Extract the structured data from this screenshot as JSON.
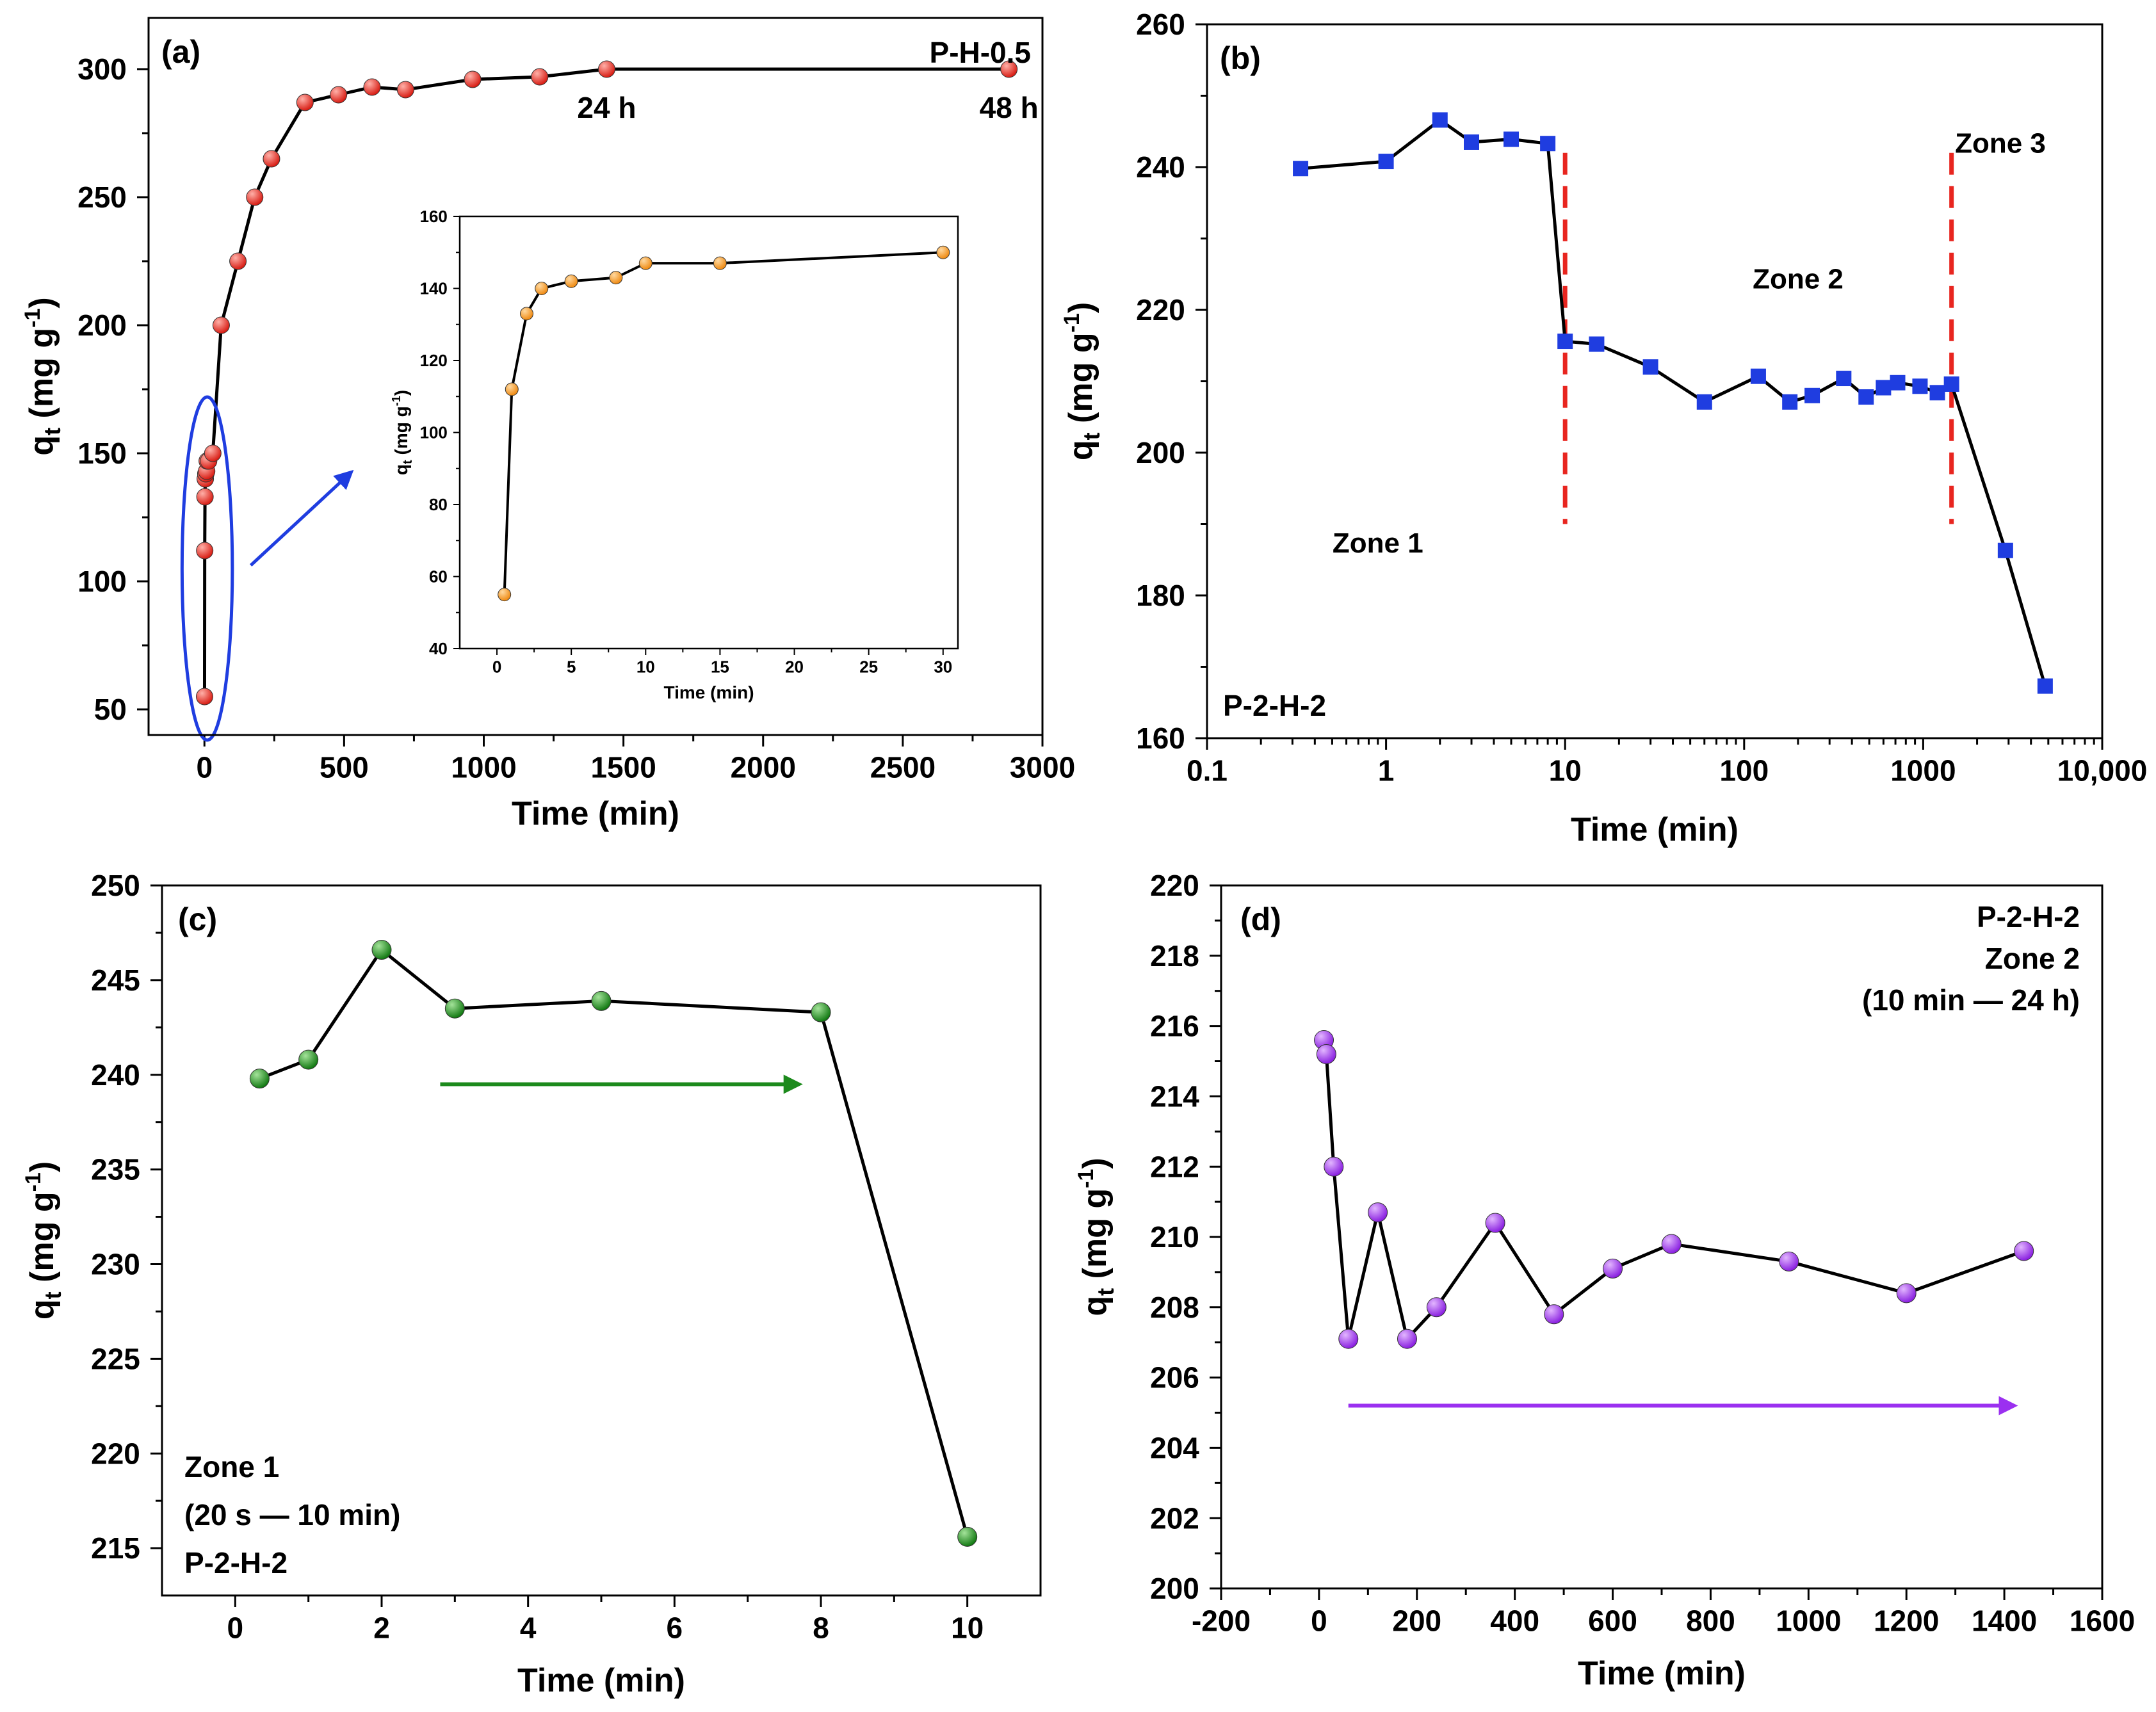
{
  "figure": {
    "panels": [
      "a",
      "b",
      "c",
      "d"
    ]
  },
  "chart_data": [
    {
      "id": "a",
      "type": "scatter",
      "panel_label": "(a)",
      "title": "P-H-0.5",
      "xlabel": "Time (min)",
      "ylabel": "q_t (mg g^-1)",
      "ylabel_main": "q",
      "ylabel_sub": "t",
      "ylabel_unit": " (mg g",
      "ylabel_exp": "-1",
      "ylabel_close": ")",
      "xlim": [
        -200,
        3000
      ],
      "ylim": [
        40,
        320
      ],
      "xticks": [
        0,
        500,
        1000,
        1500,
        2000,
        2500,
        3000
      ],
      "xtick_labels": [
        "0",
        "500",
        "1000",
        "1500",
        "2000",
        "2500",
        "3000"
      ],
      "yticks": [
        50,
        100,
        150,
        200,
        250,
        300
      ],
      "ytick_labels": [
        "50",
        "100",
        "150",
        "200",
        "250",
        "300"
      ],
      "xscale": "linear",
      "marker": "circle",
      "marker_color": "#e8251f",
      "series": [
        {
          "name": "P-H-0.5",
          "x": [
            0.5,
            1,
            2,
            3,
            5,
            8,
            10,
            15,
            30,
            60,
            120,
            180,
            240,
            360,
            480,
            600,
            720,
            960,
            1200,
            1440,
            2880
          ],
          "y": [
            55,
            112,
            133,
            140,
            142,
            143,
            147,
            147,
            150,
            200,
            225,
            250,
            265,
            287,
            290,
            293,
            292,
            296,
            297,
            300,
            300
          ]
        }
      ],
      "annotations": [
        {
          "text": "24 h",
          "x": 1440,
          "y": 281
        },
        {
          "text": "48 h",
          "x": 2880,
          "y": 281
        }
      ],
      "ellipse": {
        "cx": 10,
        "cy": 105,
        "rx": 90,
        "ry": 67
      },
      "inset": {
        "xlabel": "Time (min)",
        "ylabel": "q_t (mg g^-1)",
        "ylabel_main": "q",
        "ylabel_sub": "t",
        "ylabel_unit": " (mg g",
        "ylabel_exp": "-1",
        "ylabel_close": ")",
        "xlim": [
          -2.5,
          31
        ],
        "ylim": [
          40,
          160
        ],
        "xticks": [
          0,
          5,
          10,
          15,
          20,
          25,
          30
        ],
        "xtick_labels": [
          "0",
          "5",
          "10",
          "15",
          "20",
          "25",
          "30"
        ],
        "yticks": [
          40,
          60,
          80,
          100,
          120,
          140,
          160
        ],
        "ytick_labels": [
          "40",
          "60",
          "80",
          "100",
          "120",
          "140",
          "160"
        ],
        "marker_color": "#f5921e",
        "x": [
          0.5,
          1,
          2,
          3,
          5,
          8,
          10,
          15,
          30
        ],
        "y": [
          55,
          112,
          133,
          140,
          142,
          143,
          147,
          147,
          150
        ]
      }
    },
    {
      "id": "b",
      "type": "scatter",
      "panel_label": "(b)",
      "title": "P-2-H-2",
      "xlabel": "Time (min)",
      "ylabel": "q_t (mg g^-1)",
      "ylabel_main": "q",
      "ylabel_sub": "t",
      "ylabel_unit": " (mg g",
      "ylabel_exp": "-1",
      "ylabel_close": ")",
      "xscale": "log",
      "xlim": [
        0.1,
        10000
      ],
      "ylim": [
        160,
        260
      ],
      "xticks": [
        0.1,
        1,
        10,
        100,
        1000,
        10000
      ],
      "xtick_labels": [
        "0.1",
        "1",
        "10",
        "100",
        "1000",
        "10,000"
      ],
      "yticks": [
        160,
        180,
        200,
        220,
        240,
        260
      ],
      "ytick_labels": [
        "160",
        "180",
        "200",
        "220",
        "240",
        "260"
      ],
      "marker": "square",
      "marker_color": "#1f3de0",
      "series": [
        {
          "name": "P-2-H-2",
          "x": [
            0.333,
            1,
            2,
            3,
            5,
            8,
            10,
            15,
            30,
            60,
            120,
            180,
            240,
            360,
            480,
            600,
            720,
            960,
            1200,
            1440,
            2880,
            4800
          ],
          "y": [
            239.8,
            240.8,
            246.6,
            243.5,
            243.9,
            243.3,
            215.6,
            215.2,
            212.0,
            207.1,
            210.7,
            207.1,
            208.0,
            210.4,
            207.8,
            209.1,
            209.8,
            209.3,
            208.4,
            209.6,
            186.3,
            167.3
          ]
        }
      ],
      "vlines": [
        10,
        1440
      ],
      "vline_range": [
        190,
        242
      ],
      "vline_color": "#e8251f",
      "zones": [
        {
          "text": "Zone 1",
          "x": 0.9,
          "y": 186
        },
        {
          "text": "Zone 2",
          "x": 200,
          "y": 223
        },
        {
          "text": "Zone 3",
          "x": 2700,
          "y": 242
        }
      ]
    },
    {
      "id": "c",
      "type": "scatter",
      "panel_label": "(c)",
      "title": "P-2-H-2",
      "xlabel": "Time (min)",
      "ylabel": "q_t (mg g^-1)",
      "ylabel_main": "q",
      "ylabel_sub": "t",
      "ylabel_unit": " (mg g",
      "ylabel_exp": "-1",
      "ylabel_close": ")",
      "xlim": [
        -1,
        11
      ],
      "ylim": [
        212.5,
        250
      ],
      "xticks": [
        0,
        2,
        4,
        6,
        8,
        10
      ],
      "xtick_labels": [
        "0",
        "2",
        "4",
        "6",
        "8",
        "10"
      ],
      "yticks": [
        215,
        220,
        225,
        230,
        235,
        240,
        245,
        250
      ],
      "ytick_labels": [
        "215",
        "220",
        "225",
        "230",
        "235",
        "240",
        "245",
        "250"
      ],
      "marker": "circle",
      "marker_color": "#1c8a1c",
      "series": [
        {
          "name": "P-2-H-2",
          "x": [
            0.333,
            1,
            2,
            3,
            5,
            8,
            10
          ],
          "y": [
            239.8,
            240.8,
            246.6,
            243.5,
            243.9,
            243.3,
            215.6
          ]
        }
      ],
      "arrow": {
        "x1": 2.8,
        "x2": 7.7,
        "y": 239.5
      },
      "zone_label": "Zone 1",
      "zone_range": "(20 s — 10 min)",
      "zone_color": "#1c8a1c"
    },
    {
      "id": "d",
      "type": "scatter",
      "panel_label": "(d)",
      "title": "P-2-H-2",
      "xlabel": "Time (min)",
      "ylabel": "q_t (mg g^-1)",
      "ylabel_main": "q",
      "ylabel_sub": "t",
      "ylabel_unit": " (mg g",
      "ylabel_exp": "-1",
      "ylabel_close": ")",
      "xlim": [
        -200,
        1600
      ],
      "ylim": [
        200,
        220
      ],
      "xticks": [
        -200,
        0,
        200,
        400,
        600,
        800,
        1000,
        1200,
        1400,
        1600
      ],
      "xtick_labels": [
        "-200",
        "0",
        "200",
        "400",
        "600",
        "800",
        "1000",
        "1200",
        "1400",
        "1600"
      ],
      "yticks": [
        200,
        202,
        204,
        206,
        208,
        210,
        212,
        214,
        216,
        218,
        220
      ],
      "ytick_labels": [
        "200",
        "202",
        "204",
        "206",
        "208",
        "210",
        "212",
        "214",
        "216",
        "218",
        "220"
      ],
      "marker": "circle",
      "marker_color": "#9b30f0",
      "series": [
        {
          "name": "P-2-H-2",
          "x": [
            10,
            15,
            30,
            60,
            120,
            180,
            240,
            360,
            480,
            600,
            720,
            960,
            1200,
            1440
          ],
          "y": [
            215.6,
            215.2,
            212.0,
            207.1,
            210.7,
            207.1,
            208.0,
            210.4,
            207.8,
            209.1,
            209.8,
            209.3,
            208.4,
            209.6
          ]
        }
      ],
      "arrow": {
        "x1": 60,
        "x2": 1420,
        "y": 205.2
      },
      "zone_label": "Zone 2",
      "zone_range": "(10 min — 24 h)",
      "zone_color": "#9b30f0"
    }
  ]
}
